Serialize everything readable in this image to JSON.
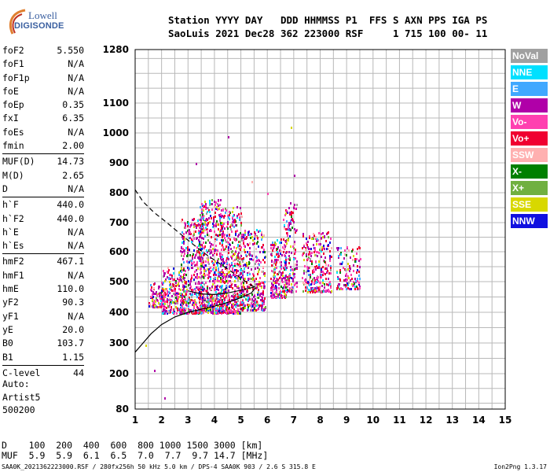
{
  "logo": {
    "line1": "Lowell",
    "line2": "DIGISONDE"
  },
  "header": {
    "line1": "Station YYYY DAY   DDD HHMMSS P1  FFS S AXN PPS IGA PS",
    "line2": "SaoLuis 2021 Dec28 362 223000 RSF     1 715 100 00- 11"
  },
  "params": {
    "group1": [
      {
        "label": "foF2",
        "value": "5.550"
      },
      {
        "label": "foF1",
        "value": "N/A"
      },
      {
        "label": "foF1p",
        "value": "N/A"
      },
      {
        "label": "foE",
        "value": "N/A"
      },
      {
        "label": "foEp",
        "value": "0.35"
      },
      {
        "label": "fxI",
        "value": "6.35"
      },
      {
        "label": "foEs",
        "value": "N/A"
      },
      {
        "label": "fmin",
        "value": "2.00"
      }
    ],
    "group2": [
      {
        "label": "MUF(D)",
        "value": "14.73"
      },
      {
        "label": "M(D)",
        "value": "2.65"
      },
      {
        "label": "D",
        "value": "N/A"
      }
    ],
    "group3": [
      {
        "label": "h`F",
        "value": "440.0"
      },
      {
        "label": "h`F2",
        "value": "440.0"
      },
      {
        "label": "h`E",
        "value": "N/A"
      },
      {
        "label": "h`Es",
        "value": "N/A"
      }
    ],
    "group4": [
      {
        "label": "hmF2",
        "value": "467.1"
      },
      {
        "label": "hmF1",
        "value": "N/A"
      },
      {
        "label": "hmE",
        "value": "110.0"
      },
      {
        "label": "yF2",
        "value": "90.3"
      },
      {
        "label": "yF1",
        "value": "N/A"
      },
      {
        "label": "yE",
        "value": "20.0"
      },
      {
        "label": "B0",
        "value": "103.7"
      },
      {
        "label": "B1",
        "value": "1.15"
      }
    ],
    "group5": [
      {
        "label": "C-level",
        "value": "44"
      }
    ]
  },
  "auto": {
    "line1": "Auto:",
    "line2": "Artist5",
    "line3": "500200"
  },
  "legend": [
    {
      "label": "NoVal",
      "color": "#a0a0a0"
    },
    {
      "label": "NNE",
      "color": "#00e0ff"
    },
    {
      "label": "E",
      "color": "#40a8ff"
    },
    {
      "label": "W",
      "color": "#b000a8"
    },
    {
      "label": "Vo-",
      "color": "#ff40b0"
    },
    {
      "label": "Vo+",
      "color": "#f00030"
    },
    {
      "label": "SSW",
      "color": "#ffb0b0"
    },
    {
      "label": "X-",
      "color": "#008000"
    },
    {
      "label": "X+",
      "color": "#70b040"
    },
    {
      "label": "SSE",
      "color": "#d8d800"
    },
    {
      "label": "NNW",
      "color": "#1010e0"
    }
  ],
  "muf_table": {
    "line1": "D    100  200  400  600  800 1000 1500 3000 [km]",
    "line2": "MUF  5.9  5.9  6.1  6.5  7.0  7.7  9.7 14.7 [MHz]"
  },
  "footer": {
    "left": "SAA0K_2021362223000.RSF / 280fx256h 50 kHz 5.0 km / DPS-4 SAA0K 903 / 2.6 S 315.8 E",
    "right": "Ion2Png 1.3.17"
  },
  "chart_data": {
    "type": "scatter",
    "x_ticks": [
      1,
      2,
      3,
      4,
      5,
      6,
      7,
      8,
      9,
      10,
      11,
      12,
      13,
      14,
      15
    ],
    "y_ticks": [
      80,
      200,
      300,
      400,
      500,
      600,
      700,
      800,
      900,
      1000,
      1100,
      1280
    ],
    "xlim": [
      1,
      15
    ],
    "ylim": [
      80,
      1280
    ],
    "grid": true,
    "legend_position": "right",
    "clusters": [
      {
        "x": [
          1.5,
          2.1
        ],
        "y": [
          420,
          500
        ],
        "count": 110
      },
      {
        "x": [
          2.0,
          2.9
        ],
        "y": [
          400,
          550
        ],
        "count": 230
      },
      {
        "x": [
          2.7,
          3.6
        ],
        "y": [
          400,
          720
        ],
        "count": 420
      },
      {
        "x": [
          3.4,
          4.3
        ],
        "y": [
          400,
          780
        ],
        "count": 520
      },
      {
        "x": [
          4.2,
          5.0
        ],
        "y": [
          400,
          760
        ],
        "count": 460
      },
      {
        "x": [
          5.0,
          5.9
        ],
        "y": [
          410,
          680
        ],
        "count": 330
      },
      {
        "x": [
          6.1,
          6.7
        ],
        "y": [
          450,
          650
        ],
        "count": 200
      },
      {
        "x": [
          6.6,
          7.1
        ],
        "y": [
          470,
          780
        ],
        "count": 170
      },
      {
        "x": [
          7.3,
          8.4
        ],
        "y": [
          470,
          670
        ],
        "count": 260
      },
      {
        "x": [
          8.6,
          9.5
        ],
        "y": [
          480,
          620
        ],
        "count": 120
      }
    ],
    "outliers": [
      {
        "x": 1.7,
        "y": 213
      },
      {
        "x": 2.1,
        "y": 120
      },
      {
        "x": 4.5,
        "y": 990
      },
      {
        "x": 6.9,
        "y": 1020
      },
      {
        "x": 3.3,
        "y": 900
      },
      {
        "x": 7.0,
        "y": 860
      },
      {
        "x": 1.4,
        "y": 295
      },
      {
        "x": 5.4,
        "y": 840
      },
      {
        "x": 6.0,
        "y": 800
      }
    ],
    "profile_curve": {
      "x": [
        1.0,
        1.3,
        1.6,
        2.0,
        2.5,
        3.0,
        3.5,
        4.0,
        4.5,
        5.0,
        5.4,
        5.55
      ],
      "y": [
        270,
        300,
        330,
        360,
        385,
        400,
        410,
        420,
        432,
        448,
        463,
        480
      ]
    },
    "dashed_curve": {
      "x": [
        1.0,
        1.3,
        1.7,
        2.2,
        2.7,
        3.2,
        3.7,
        4.2,
        4.7,
        5.1,
        5.4,
        5.55
      ],
      "y": [
        810,
        770,
        735,
        700,
        662,
        625,
        590,
        560,
        530,
        505,
        488,
        480
      ]
    },
    "lower_branch": {
      "x": [
        3.0,
        3.5,
        4.0,
        4.5,
        5.0,
        5.5,
        5.55
      ],
      "y": [
        470,
        460,
        458,
        463,
        472,
        482,
        485
      ]
    }
  }
}
